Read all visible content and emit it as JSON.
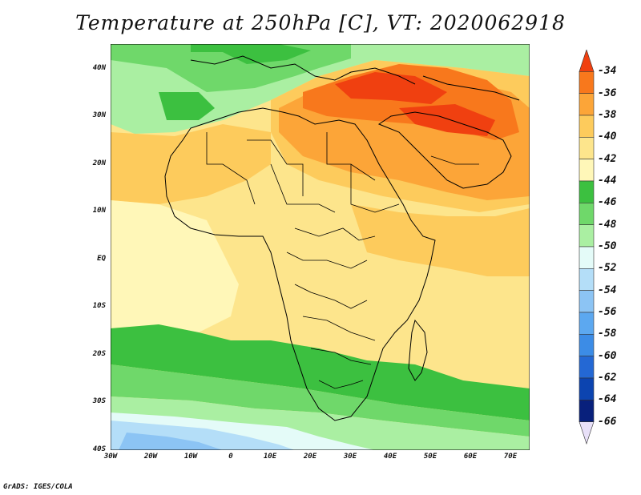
{
  "title": "Temperature at 250hPa [C], VT: 2020062918",
  "credit": "GrADS: IGES/COLA",
  "map": {
    "lat_labels": [
      "40N",
      "30N",
      "20N",
      "10N",
      "EQ",
      "10S",
      "20S",
      "30S",
      "40S"
    ],
    "lon_labels": [
      "30W",
      "20W",
      "10W",
      "0",
      "10E",
      "20E",
      "30E",
      "40E",
      "50E",
      "60E",
      "70E"
    ],
    "lat_range": [
      -40,
      45
    ],
    "lon_range": [
      -30,
      75
    ]
  },
  "colorbar": {
    "labels": [
      "-34",
      "-36",
      "-38",
      "-40",
      "-42",
      "-44",
      "-46",
      "-48",
      "-50",
      "-52",
      "-54",
      "-56",
      "-58",
      "-60",
      "-62",
      "-64",
      "-66"
    ],
    "colors": [
      "#f04010",
      "#f8781c",
      "#fca538",
      "#fdcb5c",
      "#fde58c",
      "#fff7b8",
      "#3cc040",
      "#6fd86a",
      "#aaefa2",
      "#e4fbf8",
      "#b4def8",
      "#8cc4f4",
      "#5ca8f0",
      "#3c8ce6",
      "#2468d4",
      "#0c44b0",
      "#08207c",
      "#e8e0f8"
    ]
  }
}
